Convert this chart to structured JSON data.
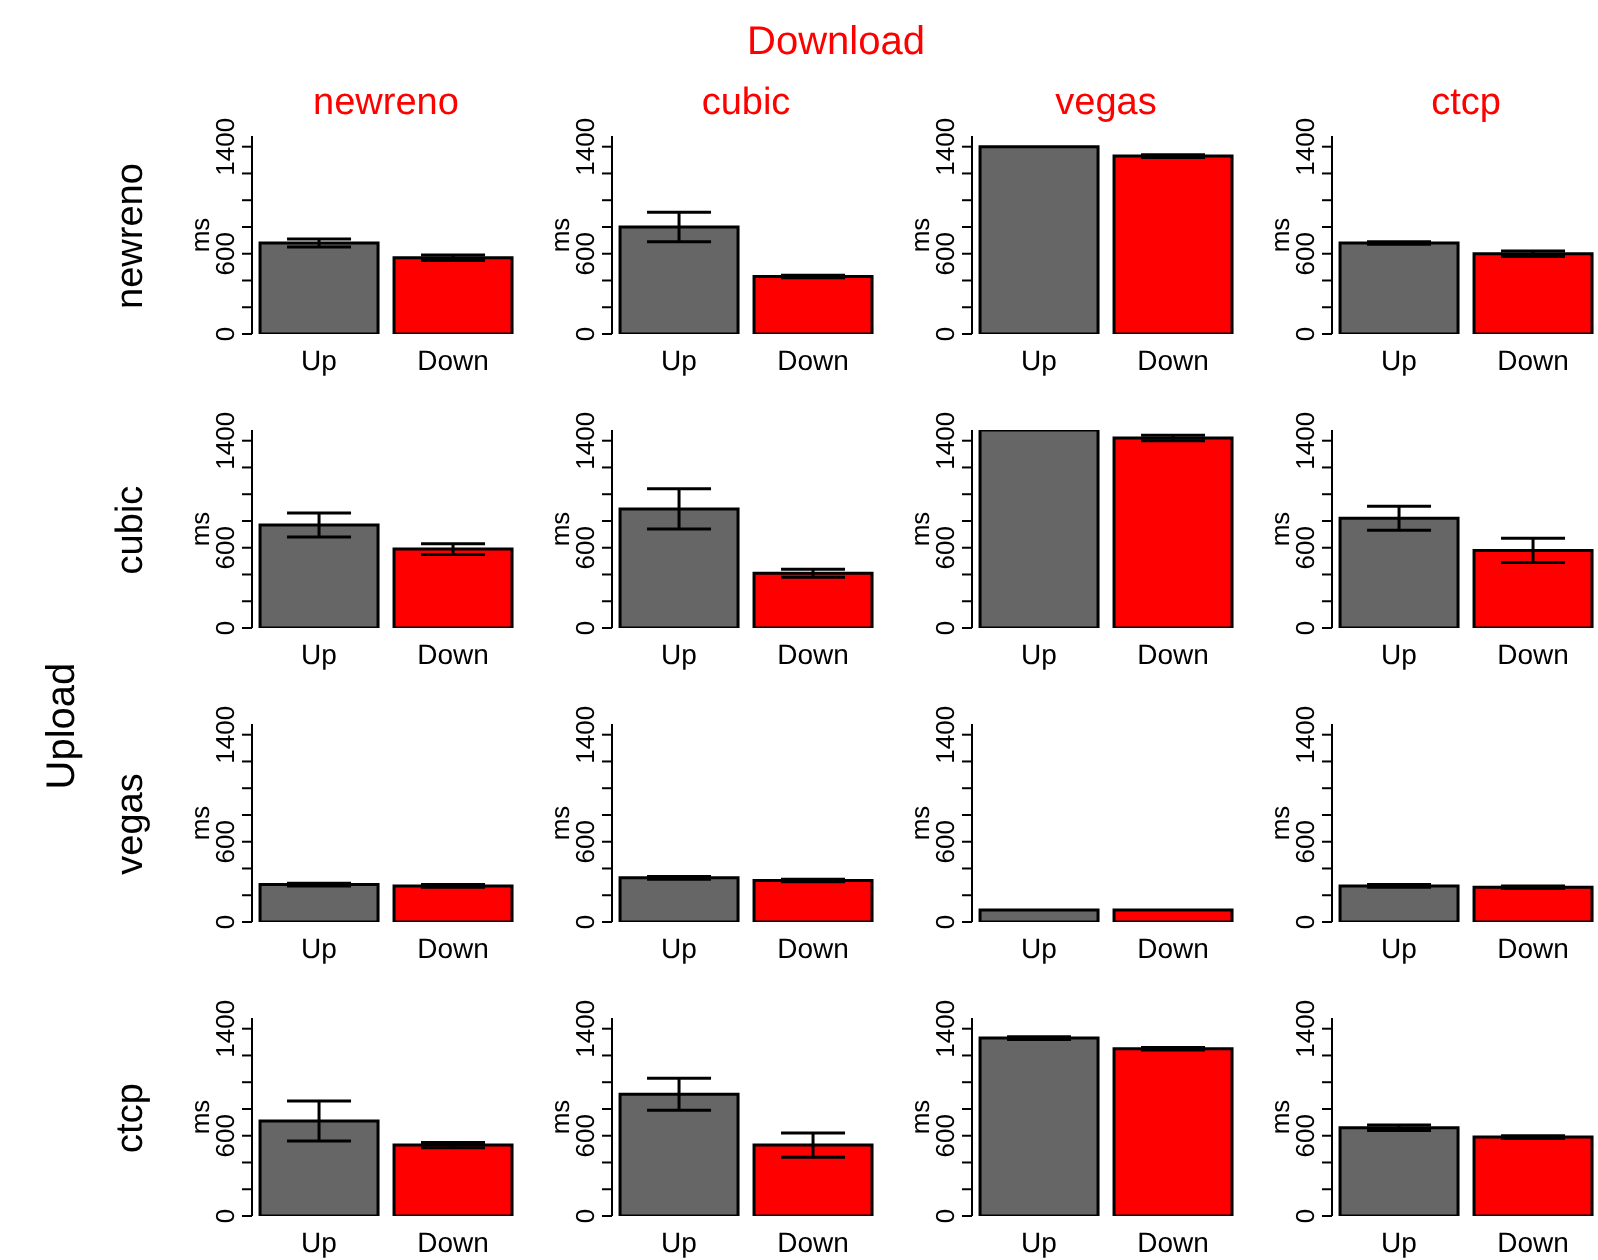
{
  "chart_data": [
    {
      "type": "bar",
      "title": "newreno",
      "ylabel": "ms",
      "annotations": [
        "Download",
        "Upload",
        "newreno"
      ],
      "categories": [
        "Up",
        "Down"
      ],
      "values": [
        680,
        570
      ],
      "colors": [
        "#666666",
        "#ff0000"
      ],
      "errors": [
        30,
        20
      ],
      "ylim": [
        0,
        1480
      ],
      "yticks": [
        0,
        {
          "value": 200,
          "label": null
        },
        {
          "value": 400,
          "label": null
        },
        600,
        {
          "value": 800,
          "label": null
        },
        {
          "value": 1000,
          "label": null
        },
        {
          "value": 1200,
          "label": null
        },
        1400
      ]
    },
    {
      "type": "bar",
      "title": "cubic",
      "ylabel": "ms",
      "categories": [
        "Up",
        "Down"
      ],
      "values": [
        800,
        430
      ],
      "colors": [
        "#666666",
        "#ff0000"
      ],
      "errors": [
        110,
        10
      ],
      "ylim": [
        0,
        1480
      ],
      "yticks": [
        0,
        {
          "value": 200,
          "label": null
        },
        {
          "value": 400,
          "label": null
        },
        600,
        {
          "value": 800,
          "label": null
        },
        {
          "value": 1000,
          "label": null
        },
        {
          "value": 1200,
          "label": null
        },
        1400
      ]
    },
    {
      "type": "bar",
      "title": "vegas",
      "ylabel": "ms",
      "categories": [
        "Up",
        "Down"
      ],
      "values": [
        1400,
        1330
      ],
      "colors": [
        "#666666",
        "#ff0000"
      ],
      "errors": [
        null,
        10
      ],
      "ylim": [
        0,
        1480
      ],
      "yticks": [
        0,
        {
          "value": 200,
          "label": null
        },
        {
          "value": 400,
          "label": null
        },
        600,
        {
          "value": 800,
          "label": null
        },
        {
          "value": 1000,
          "label": null
        },
        {
          "value": 1200,
          "label": null
        },
        1400
      ]
    },
    {
      "type": "bar",
      "title": "ctcp",
      "ylabel": "ms",
      "categories": [
        "Up",
        "Down"
      ],
      "values": [
        680,
        600
      ],
      "colors": [
        "#666666",
        "#ff0000"
      ],
      "errors": [
        10,
        20
      ],
      "ylim": [
        0,
        1480
      ],
      "yticks": [
        0,
        {
          "value": 200,
          "label": null
        },
        {
          "value": 400,
          "label": null
        },
        600,
        {
          "value": 800,
          "label": null
        },
        {
          "value": 1000,
          "label": null
        },
        {
          "value": 1200,
          "label": null
        },
        1400
      ]
    },
    {
      "type": "bar",
      "ylabel": "ms",
      "annotations": [
        "cubic"
      ],
      "categories": [
        "Up",
        "Down"
      ],
      "values": [
        770,
        590
      ],
      "colors": [
        "#666666",
        "#ff0000"
      ],
      "errors": [
        90,
        40
      ],
      "ylim": [
        0,
        1480
      ],
      "yticks": [
        0,
        {
          "value": 200,
          "label": null
        },
        {
          "value": 400,
          "label": null
        },
        600,
        {
          "value": 800,
          "label": null
        },
        {
          "value": 1000,
          "label": null
        },
        {
          "value": 1200,
          "label": null
        },
        1400
      ]
    },
    {
      "type": "bar",
      "ylabel": "ms",
      "categories": [
        "Up",
        "Down"
      ],
      "values": [
        890,
        410
      ],
      "colors": [
        "#666666",
        "#ff0000"
      ],
      "errors": [
        150,
        30
      ],
      "ylim": [
        0,
        1480
      ],
      "yticks": [
        0,
        {
          "value": 200,
          "label": null
        },
        {
          "value": 400,
          "label": null
        },
        600,
        {
          "value": 800,
          "label": null
        },
        {
          "value": 1000,
          "label": null
        },
        {
          "value": 1200,
          "label": null
        },
        1400
      ]
    },
    {
      "type": "bar",
      "ylabel": "ms",
      "categories": [
        "Up",
        "Down"
      ],
      "values": [
        1480,
        1420
      ],
      "colors": [
        "#666666",
        "#ff0000"
      ],
      "errors": [
        null,
        20
      ],
      "ylim": [
        0,
        1480
      ],
      "yticks": [
        0,
        {
          "value": 200,
          "label": null
        },
        {
          "value": 400,
          "label": null
        },
        600,
        {
          "value": 800,
          "label": null
        },
        {
          "value": 1000,
          "label": null
        },
        {
          "value": 1200,
          "label": null
        },
        1400
      ]
    },
    {
      "type": "bar",
      "ylabel": "ms",
      "categories": [
        "Up",
        "Down"
      ],
      "values": [
        820,
        580
      ],
      "colors": [
        "#666666",
        "#ff0000"
      ],
      "errors": [
        90,
        90
      ],
      "ylim": [
        0,
        1480
      ],
      "yticks": [
        0,
        {
          "value": 200,
          "label": null
        },
        {
          "value": 400,
          "label": null
        },
        600,
        {
          "value": 800,
          "label": null
        },
        {
          "value": 1000,
          "label": null
        },
        {
          "value": 1200,
          "label": null
        },
        1400
      ]
    },
    {
      "type": "bar",
      "ylabel": "ms",
      "annotations": [
        "vegas"
      ],
      "categories": [
        "Up",
        "Down"
      ],
      "values": [
        280,
        270
      ],
      "colors": [
        "#666666",
        "#ff0000"
      ],
      "errors": [
        10,
        10
      ],
      "ylim": [
        0,
        1480
      ],
      "yticks": [
        0,
        {
          "value": 200,
          "label": null
        },
        {
          "value": 400,
          "label": null
        },
        600,
        {
          "value": 800,
          "label": null
        },
        {
          "value": 1000,
          "label": null
        },
        {
          "value": 1200,
          "label": null
        },
        1400
      ]
    },
    {
      "type": "bar",
      "ylabel": "ms",
      "categories": [
        "Up",
        "Down"
      ],
      "values": [
        330,
        310
      ],
      "colors": [
        "#666666",
        "#ff0000"
      ],
      "errors": [
        10,
        10
      ],
      "ylim": [
        0,
        1480
      ],
      "yticks": [
        0,
        {
          "value": 200,
          "label": null
        },
        {
          "value": 400,
          "label": null
        },
        600,
        {
          "value": 800,
          "label": null
        },
        {
          "value": 1000,
          "label": null
        },
        {
          "value": 1200,
          "label": null
        },
        1400
      ]
    },
    {
      "type": "bar",
      "ylabel": "ms",
      "categories": [
        "Up",
        "Down"
      ],
      "values": [
        90,
        90
      ],
      "colors": [
        "#666666",
        "#ff0000"
      ],
      "ylim": [
        0,
        1480
      ],
      "yticks": [
        0,
        {
          "value": 200,
          "label": null
        },
        {
          "value": 400,
          "label": null
        },
        600,
        {
          "value": 800,
          "label": null
        },
        {
          "value": 1000,
          "label": null
        },
        {
          "value": 1200,
          "label": null
        },
        1400
      ]
    },
    {
      "type": "bar",
      "ylabel": "ms",
      "categories": [
        "Up",
        "Down"
      ],
      "values": [
        270,
        260
      ],
      "colors": [
        "#666666",
        "#ff0000"
      ],
      "errors": [
        10,
        10
      ],
      "ylim": [
        0,
        1480
      ],
      "yticks": [
        0,
        {
          "value": 200,
          "label": null
        },
        {
          "value": 400,
          "label": null
        },
        600,
        {
          "value": 800,
          "label": null
        },
        {
          "value": 1000,
          "label": null
        },
        {
          "value": 1200,
          "label": null
        },
        1400
      ]
    },
    {
      "type": "bar",
      "ylabel": "ms",
      "annotations": [
        "ctcp"
      ],
      "categories": [
        "Up",
        "Down"
      ],
      "values": [
        710,
        530
      ],
      "colors": [
        "#666666",
        "#ff0000"
      ],
      "errors": [
        150,
        20
      ],
      "ylim": [
        0,
        1480
      ],
      "yticks": [
        0,
        {
          "value": 200,
          "label": null
        },
        {
          "value": 400,
          "label": null
        },
        600,
        {
          "value": 800,
          "label": null
        },
        {
          "value": 1000,
          "label": null
        },
        {
          "value": 1200,
          "label": null
        },
        1400
      ]
    },
    {
      "type": "bar",
      "ylabel": "ms",
      "categories": [
        "Up",
        "Down"
      ],
      "values": [
        910,
        530
      ],
      "colors": [
        "#666666",
        "#ff0000"
      ],
      "errors": [
        120,
        90
      ],
      "ylim": [
        0,
        1480
      ],
      "yticks": [
        0,
        {
          "value": 200,
          "label": null
        },
        {
          "value": 400,
          "label": null
        },
        600,
        {
          "value": 800,
          "label": null
        },
        {
          "value": 1000,
          "label": null
        },
        {
          "value": 1200,
          "label": null
        },
        1400
      ]
    },
    {
      "type": "bar",
      "ylabel": "ms",
      "categories": [
        "Up",
        "Down"
      ],
      "values": [
        1330,
        1250
      ],
      "colors": [
        "#666666",
        "#ff0000"
      ],
      "errors": [
        10,
        10
      ],
      "ylim": [
        0,
        1480
      ],
      "yticks": [
        0,
        {
          "value": 200,
          "label": null
        },
        {
          "value": 400,
          "label": null
        },
        600,
        {
          "value": 800,
          "label": null
        },
        {
          "value": 1000,
          "label": null
        },
        {
          "value": 1200,
          "label": null
        },
        1400
      ]
    },
    {
      "type": "bar",
      "ylabel": "ms",
      "categories": [
        "Up",
        "Down"
      ],
      "values": [
        660,
        590
      ],
      "colors": [
        "#666666",
        "#ff0000"
      ],
      "errors": [
        20,
        10
      ],
      "ylim": [
        0,
        1480
      ],
      "yticks": [
        0,
        {
          "value": 200,
          "label": null
        },
        {
          "value": 400,
          "label": null
        },
        600,
        {
          "value": 800,
          "label": null
        },
        {
          "value": 1000,
          "label": null
        },
        {
          "value": 1200,
          "label": null
        },
        1400
      ]
    }
  ]
}
